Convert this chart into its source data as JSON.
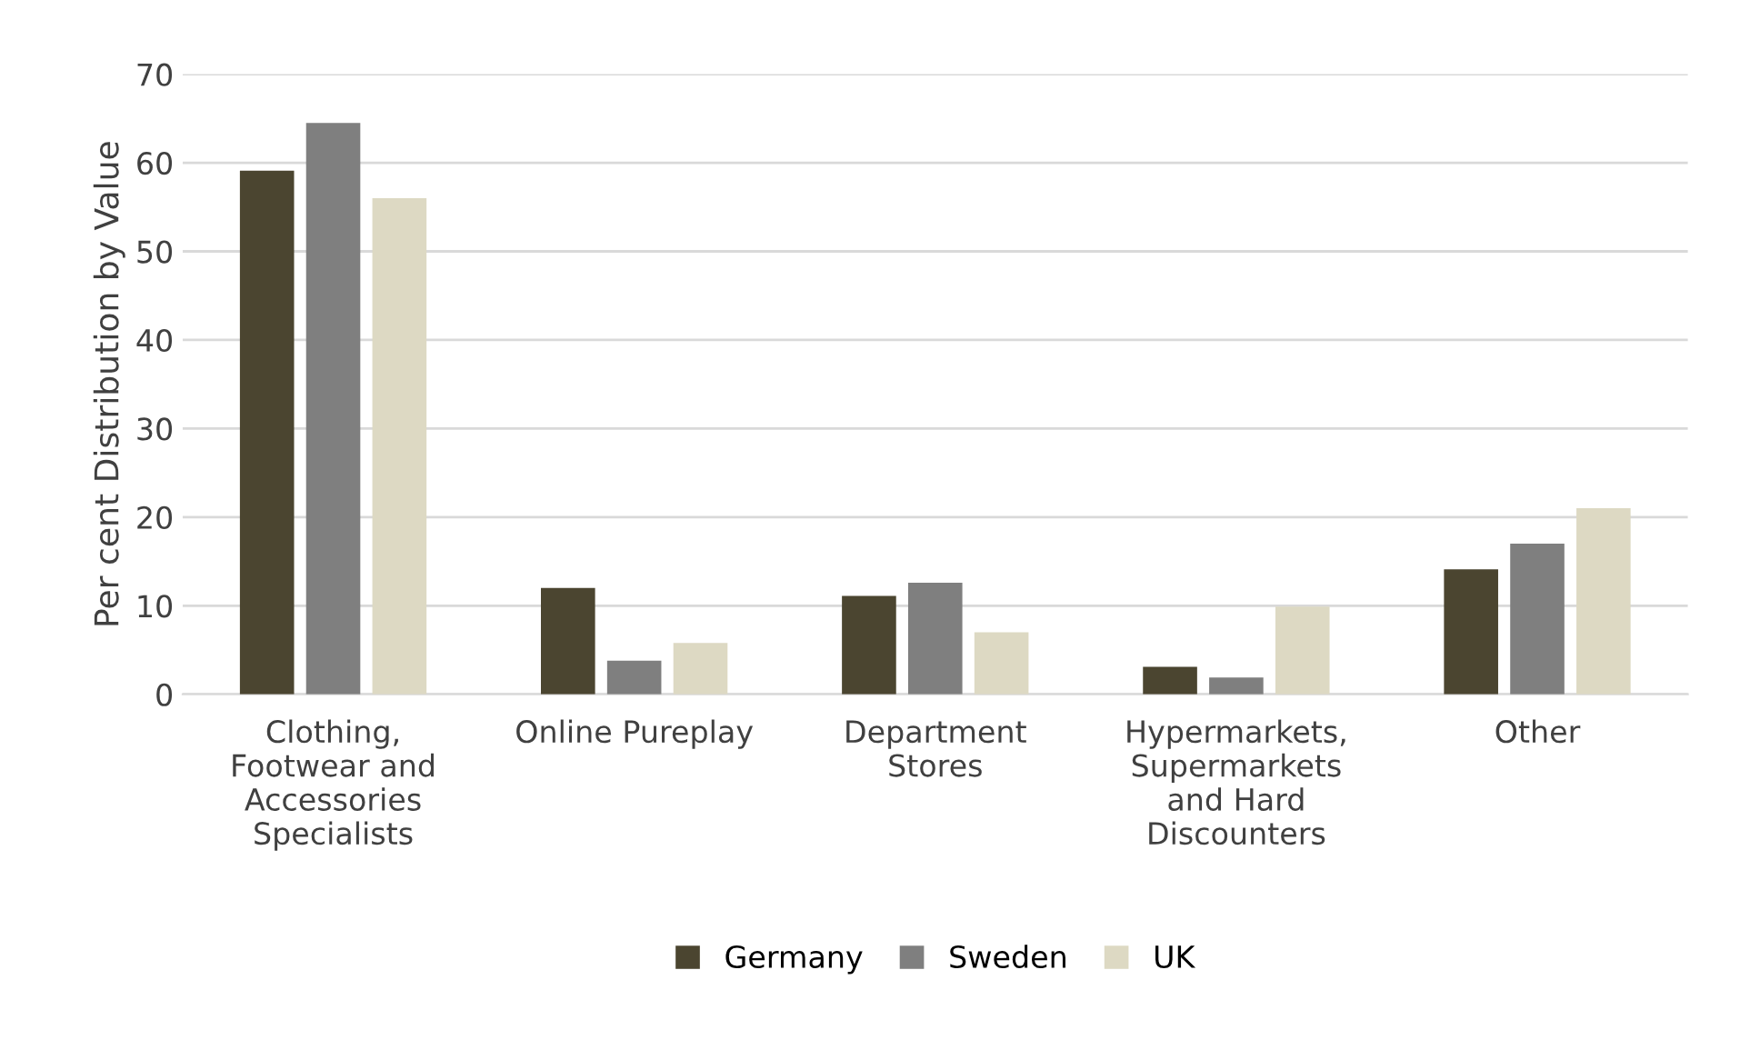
{
  "chart_data": {
    "type": "bar",
    "ylabel": "Per cent Distribution by Value",
    "categories": [
      "Clothing,\nFootwear and\nAccessories\nSpecialists",
      "Online Pureplay",
      "Department\nStores",
      "Hypermarkets,\nSupermarkets\nand Hard\nDiscounters",
      "Other"
    ],
    "series": [
      {
        "name": "Germany",
        "color": "#4b4530",
        "values": [
          59.1,
          12.0,
          11.1,
          3.1,
          14.1
        ]
      },
      {
        "name": "Sweden",
        "color": "#7f7f7f",
        "values": [
          64.5,
          3.8,
          12.6,
          1.9,
          17.0
        ]
      },
      {
        "name": "UK",
        "color": "#ddd9c3",
        "values": [
          56.0,
          5.8,
          7.0,
          9.9,
          21.0
        ]
      }
    ],
    "ylim": [
      0,
      70
    ],
    "yticks": [
      0,
      10,
      20,
      30,
      40,
      50,
      60,
      70
    ],
    "grid": "y",
    "legend": "bottom"
  }
}
